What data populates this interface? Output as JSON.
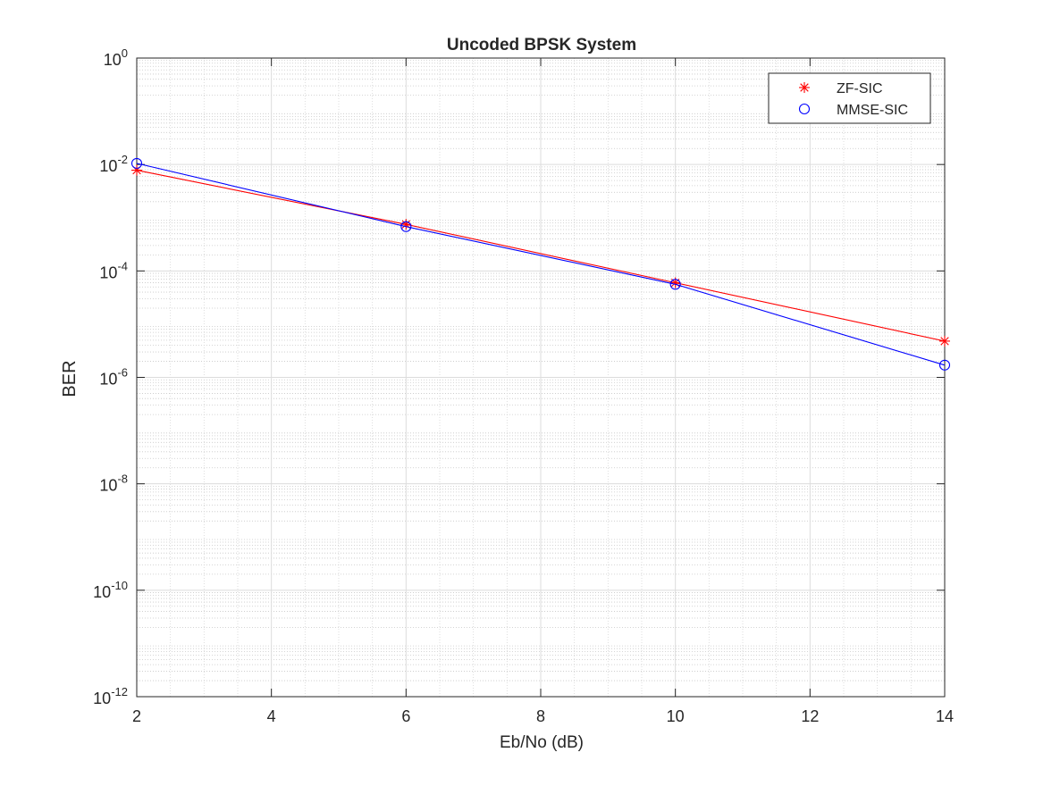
{
  "chart_data": {
    "type": "line",
    "title": "Uncoded BPSK System",
    "xlabel": "Eb/No (dB)",
    "ylabel": "BER",
    "xlim": [
      2,
      14
    ],
    "ylim": [
      1e-12,
      1
    ],
    "yscale": "log",
    "grid": true,
    "minor_grid": true,
    "legend_position": "top-right",
    "x_ticks": [
      2,
      4,
      6,
      8,
      10,
      12,
      14
    ],
    "x_tick_labels": [
      "2",
      "4",
      "6",
      "8",
      "10",
      "12",
      "14"
    ],
    "y_tick_exponents": [
      0,
      -2,
      -4,
      -6,
      -8,
      -10,
      -12
    ],
    "y_tick_base": "10",
    "x": [
      2,
      6,
      10,
      14
    ],
    "series": [
      {
        "name": "ZF-SIC",
        "values": [
          0.0078,
          0.00075,
          6e-05,
          4.8e-06
        ],
        "color": "#ff0000",
        "marker": "asterisk"
      },
      {
        "name": "MMSE-SIC",
        "values": [
          0.0105,
          0.00068,
          5.6e-05,
          1.7e-06
        ],
        "color": "#0000ff",
        "marker": "circle"
      }
    ]
  }
}
